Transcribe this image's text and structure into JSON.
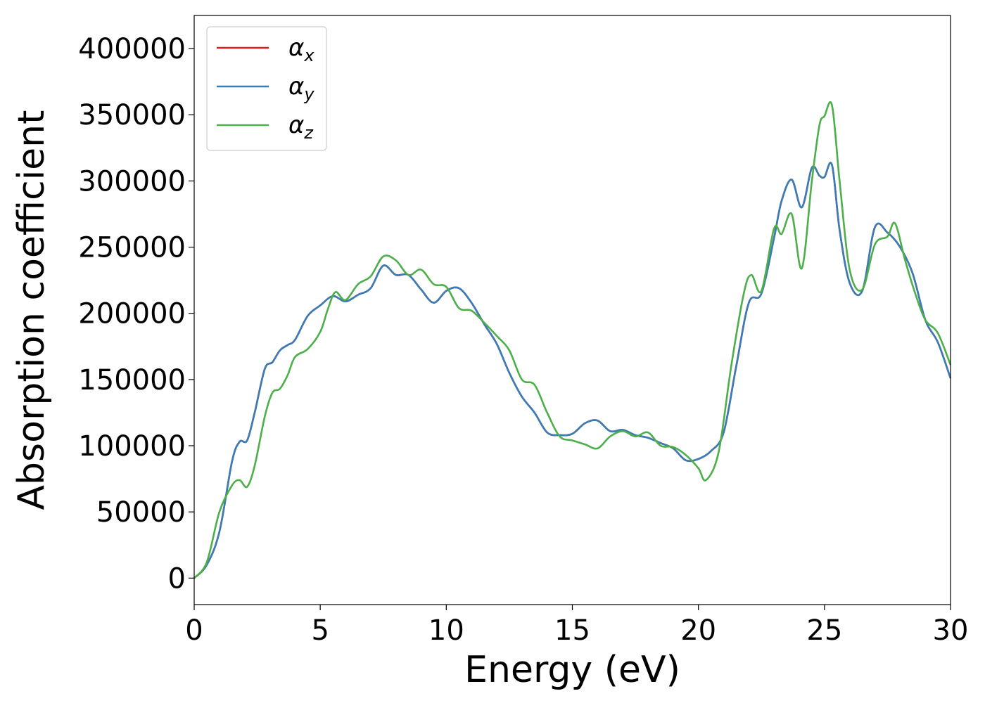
{
  "chart_data": {
    "type": "line",
    "title": "",
    "xlabel": "Energy (eV)",
    "ylabel": "Absorption coefficient",
    "xlim": [
      0,
      30
    ],
    "ylim": [
      -20000,
      425000
    ],
    "x_ticks": [
      0,
      5,
      10,
      15,
      20,
      25,
      30
    ],
    "x_tick_labels": [
      "0",
      "5",
      "10",
      "15",
      "20",
      "25",
      "30"
    ],
    "y_ticks": [
      0,
      50000,
      100000,
      150000,
      200000,
      250000,
      300000,
      350000,
      400000
    ],
    "y_tick_labels": [
      "0",
      "50000",
      "100000",
      "150000",
      "200000",
      "250000",
      "300000",
      "350000",
      "400000"
    ],
    "grid": false,
    "legend_position": "top-left",
    "series": [
      {
        "name": "α",
        "subscript": "x",
        "color": "#e41a1c",
        "x": [
          0,
          0.5,
          1,
          1.5,
          1.8,
          2.1,
          2.4,
          2.8,
          3.1,
          3.4,
          3.7,
          4.0,
          4.5,
          5.0,
          5.5,
          6.0,
          6.5,
          7.0,
          7.5,
          8.0,
          8.5,
          9.0,
          9.5,
          10.0,
          10.5,
          11.0,
          11.5,
          12.0,
          12.5,
          13.0,
          13.5,
          14.0,
          14.5,
          15.0,
          15.5,
          16.0,
          16.5,
          17.0,
          17.5,
          18.0,
          18.5,
          19.0,
          19.5,
          20.0,
          20.5,
          21.0,
          21.5,
          22.0,
          22.5,
          23.0,
          23.3,
          23.7,
          24.1,
          24.5,
          24.8,
          25.0,
          25.3,
          25.6,
          26.0,
          26.5,
          27.0,
          27.5,
          28.0,
          28.5,
          29.0,
          29.5,
          30.0
        ],
        "y": [
          0,
          10000,
          35000,
          88000,
          103000,
          104000,
          125000,
          158000,
          163000,
          172000,
          176000,
          180000,
          198000,
          206000,
          213000,
          209000,
          214000,
          219000,
          236000,
          229000,
          229000,
          218000,
          208000,
          217000,
          219000,
          208000,
          192000,
          177000,
          155000,
          137000,
          125000,
          110000,
          108000,
          109000,
          117000,
          119000,
          111000,
          112000,
          108000,
          106000,
          102000,
          98000,
          89000,
          90000,
          96000,
          110000,
          160000,
          208000,
          215000,
          257000,
          285000,
          301000,
          280000,
          310000,
          304000,
          303000,
          312000,
          263000,
          223000,
          217000,
          265000,
          261000,
          250000,
          230000,
          195000,
          178000,
          151000
        ]
      },
      {
        "name": "α",
        "subscript": "y",
        "color": "#377eb8",
        "x": [
          0,
          0.5,
          1,
          1.5,
          1.8,
          2.1,
          2.4,
          2.8,
          3.1,
          3.4,
          3.7,
          4.0,
          4.5,
          5.0,
          5.5,
          6.0,
          6.5,
          7.0,
          7.5,
          8.0,
          8.5,
          9.0,
          9.5,
          10.0,
          10.5,
          11.0,
          11.5,
          12.0,
          12.5,
          13.0,
          13.5,
          14.0,
          14.5,
          15.0,
          15.5,
          16.0,
          16.5,
          17.0,
          17.5,
          18.0,
          18.5,
          19.0,
          19.5,
          20.0,
          20.5,
          21.0,
          21.5,
          22.0,
          22.5,
          23.0,
          23.3,
          23.7,
          24.1,
          24.5,
          24.8,
          25.0,
          25.3,
          25.6,
          26.0,
          26.5,
          27.0,
          27.5,
          28.0,
          28.5,
          29.0,
          29.5,
          30.0
        ],
        "y": [
          0,
          10000,
          35000,
          88000,
          103000,
          104000,
          125000,
          158000,
          163000,
          172000,
          176000,
          180000,
          198000,
          206000,
          213000,
          209000,
          214000,
          219000,
          236000,
          229000,
          229000,
          218000,
          208000,
          217000,
          219000,
          208000,
          192000,
          177000,
          155000,
          137000,
          125000,
          110000,
          108000,
          109000,
          117000,
          119000,
          111000,
          112000,
          108000,
          106000,
          102000,
          98000,
          89000,
          90000,
          96000,
          110000,
          160000,
          208000,
          215000,
          257000,
          285000,
          301000,
          280000,
          310000,
          304000,
          303000,
          312000,
          263000,
          223000,
          217000,
          265000,
          261000,
          250000,
          230000,
          195000,
          178000,
          151000
        ]
      },
      {
        "name": "α",
        "subscript": "z",
        "color": "#4daf4a",
        "x": [
          0,
          0.5,
          1,
          1.5,
          1.8,
          2.1,
          2.4,
          2.8,
          3.1,
          3.4,
          3.7,
          4.0,
          4.5,
          5.0,
          5.3,
          5.6,
          6.0,
          6.5,
          7.0,
          7.5,
          8.0,
          8.5,
          9.0,
          9.5,
          10.0,
          10.5,
          11.0,
          11.5,
          12.0,
          12.5,
          13.0,
          13.5,
          14.0,
          14.5,
          15.0,
          15.5,
          16.0,
          16.5,
          17.0,
          17.5,
          18.0,
          18.5,
          19.0,
          19.5,
          20.0,
          20.3,
          20.8,
          21.3,
          21.8,
          22.1,
          22.5,
          23.0,
          23.3,
          23.7,
          24.1,
          24.5,
          24.8,
          25.0,
          25.3,
          25.6,
          26.0,
          26.5,
          27.0,
          27.5,
          27.8,
          28.2,
          28.6,
          29.0,
          29.5,
          30.0
        ],
        "y": [
          0,
          12000,
          50000,
          70000,
          74000,
          69000,
          85000,
          122000,
          140000,
          143000,
          153000,
          167000,
          173000,
          186000,
          203000,
          216000,
          210000,
          222000,
          228000,
          243000,
          240000,
          229000,
          233000,
          222000,
          220000,
          204000,
          202000,
          193000,
          183000,
          172000,
          150000,
          146000,
          125000,
          107000,
          104000,
          101000,
          98000,
          107000,
          111000,
          107000,
          110000,
          100000,
          99000,
          93000,
          83000,
          74000,
          95000,
          160000,
          215000,
          229000,
          217000,
          264000,
          260000,
          275000,
          234000,
          300000,
          342000,
          349000,
          357000,
          300000,
          233000,
          218000,
          252000,
          258000,
          268000,
          240000,
          215000,
          195000,
          185000,
          161000
        ]
      }
    ]
  }
}
